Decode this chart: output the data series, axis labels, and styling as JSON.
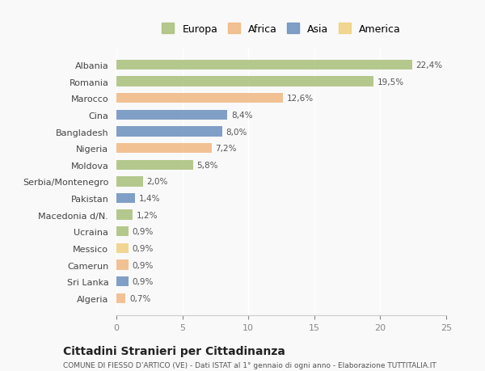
{
  "categories": [
    "Albania",
    "Romania",
    "Marocco",
    "Cina",
    "Bangladesh",
    "Nigeria",
    "Moldova",
    "Serbia/Montenegro",
    "Pakistan",
    "Macedonia d/N.",
    "Ucraina",
    "Messico",
    "Camerun",
    "Sri Lanka",
    "Algeria"
  ],
  "values": [
    22.4,
    19.5,
    12.6,
    8.4,
    8.0,
    7.2,
    5.8,
    2.0,
    1.4,
    1.2,
    0.9,
    0.9,
    0.9,
    0.9,
    0.7
  ],
  "labels": [
    "22,4%",
    "19,5%",
    "12,6%",
    "8,4%",
    "8,0%",
    "7,2%",
    "5,8%",
    "2,0%",
    "1,4%",
    "1,2%",
    "0,9%",
    "0,9%",
    "0,9%",
    "0,9%",
    "0,7%"
  ],
  "continents": [
    "Europa",
    "Europa",
    "Africa",
    "Asia",
    "Asia",
    "Africa",
    "Europa",
    "Europa",
    "Asia",
    "Europa",
    "Europa",
    "America",
    "Africa",
    "Asia",
    "Africa"
  ],
  "colors": {
    "Europa": "#a8c07a",
    "Africa": "#f0b882",
    "Asia": "#6b8fbe",
    "America": "#f0d080"
  },
  "legend_order": [
    "Europa",
    "Africa",
    "Asia",
    "America"
  ],
  "title": "Cittadini Stranieri per Cittadinanza",
  "subtitle": "COMUNE DI FIESSO D’ARTICO (VE) - Dati ISTAT al 1° gennaio di ogni anno - Elaborazione TUTTITALIA.IT",
  "xlabel": "",
  "xlim": [
    0,
    25
  ],
  "xticks": [
    0,
    5,
    10,
    15,
    20,
    25
  ],
  "bg_color": "#f9f9f9",
  "bar_bg_color": "#f0f0f0"
}
